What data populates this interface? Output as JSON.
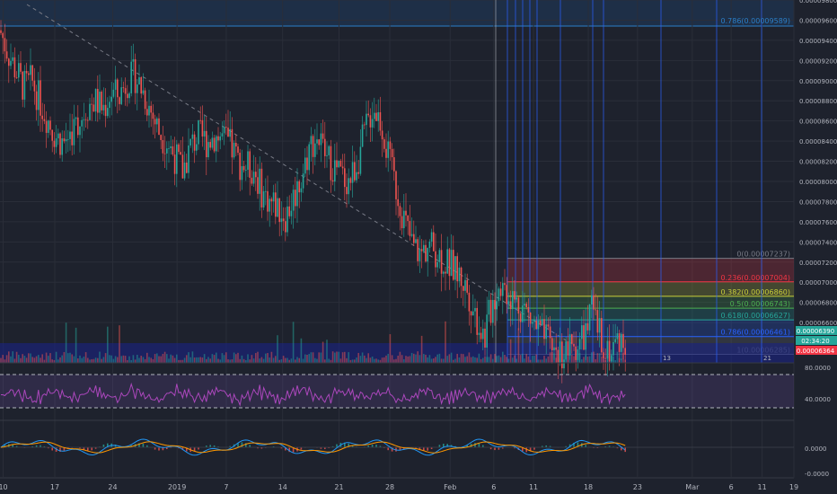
{
  "chart_data": {
    "type": "candlestick",
    "price_axis": {
      "range": [
        6.2e-05,
        9.8e-05
      ],
      "ticks": [
        "0.00009800",
        "0.00009600",
        "0.00009400",
        "0.00009200",
        "0.00009000",
        "0.00008800",
        "0.00008600",
        "0.00008400",
        "0.00008200",
        "0.00008000",
        "0.00007800",
        "0.00007600",
        "0.00007400",
        "0.00007200",
        "0.00007000",
        "0.00006800",
        "0.00006600"
      ]
    },
    "date_axis": {
      "labels": [
        {
          "t": "10",
          "x": 0.004
        },
        {
          "t": "17",
          "x": 0.069
        },
        {
          "t": "24",
          "x": 0.142
        },
        {
          "t": "2019",
          "x": 0.223
        },
        {
          "t": "7",
          "x": 0.285
        },
        {
          "t": "14",
          "x": 0.356
        },
        {
          "t": "21",
          "x": 0.427
        },
        {
          "t": "28",
          "x": 0.491
        },
        {
          "t": "Feb",
          "x": 0.567
        },
        {
          "t": "6",
          "x": 0.622
        },
        {
          "t": "11",
          "x": 0.672
        },
        {
          "t": "18",
          "x": 0.741
        },
        {
          "t": "23",
          "x": 0.803
        },
        {
          "t": "Mar",
          "x": 0.872
        },
        {
          "t": "6",
          "x": 0.921
        },
        {
          "t": "11",
          "x": 0.96
        },
        {
          "t": "19",
          "x": 1.0
        }
      ]
    },
    "fibonacci": [
      {
        "ratio": "0.786",
        "value": "0.00009589",
        "label": "0.786(0.00009589)",
        "color": "#2a7fc9"
      },
      {
        "ratio": "0",
        "value": "0.00007237",
        "label": "0(0.00007237)",
        "color": "#787b86"
      },
      {
        "ratio": "0.236",
        "value": "0.00007004",
        "label": "0.236(0.00007004)",
        "color": "#f23645"
      },
      {
        "ratio": "0.382",
        "value": "0.00006860",
        "label": "0.382(0.00006860)",
        "color": "#c9cf3a"
      },
      {
        "ratio": "0.5",
        "value": "0.00006743",
        "label": "0.5(0.00006743)",
        "color": "#4caf50"
      },
      {
        "ratio": "0.618",
        "value": "0.00006627",
        "label": "0.618(0.00006627)",
        "color": "#26a69a"
      },
      {
        "ratio": "0.786",
        "value": "0.00006461",
        "label": "0.786(0.00006461)",
        "color": "#2962ff"
      },
      {
        "ratio": "1",
        "value": "0.00006285",
        "label": "1(0.00006285)",
        "color": "#787b86"
      }
    ],
    "last_price": "0.00006390",
    "countdown": "02:34:20",
    "bid_price": "0.00006364",
    "cycle_labels": [
      "13",
      "21"
    ],
    "rsi": {
      "ticks": [
        "80.0000",
        "40.0000"
      ],
      "upper": 70,
      "lower": 30
    },
    "macd": {
      "ticks": [
        "0.0000",
        "-0.0000"
      ]
    },
    "price_path": [
      [
        0,
        9.5e-05
      ],
      [
        0.01,
        9.28e-05
      ],
      [
        0.02,
        9.1e-05
      ],
      [
        0.03,
        8.93e-05
      ],
      [
        0.04,
        9e-05
      ],
      [
        0.05,
        8.8e-05
      ],
      [
        0.06,
        8.62e-05
      ],
      [
        0.07,
        8.45e-05
      ],
      [
        0.08,
        8.38e-05
      ],
      [
        0.09,
        8.5e-05
      ],
      [
        0.1,
        8.6e-05
      ],
      [
        0.11,
        8.75e-05
      ],
      [
        0.12,
        8.8e-05
      ],
      [
        0.13,
        8.72e-05
      ],
      [
        0.14,
        8.88e-05
      ],
      [
        0.15,
        8.85e-05
      ],
      [
        0.16,
        9e-05
      ],
      [
        0.17,
        9.05e-05
      ],
      [
        0.18,
        8.9e-05
      ],
      [
        0.19,
        8.7e-05
      ],
      [
        0.2,
        8.5e-05
      ],
      [
        0.21,
        8.4e-05
      ],
      [
        0.22,
        8.25e-05
      ],
      [
        0.23,
        8.1e-05
      ],
      [
        0.24,
        8.35e-05
      ],
      [
        0.25,
        8.45e-05
      ],
      [
        0.26,
        8.4e-05
      ],
      [
        0.27,
        8.45e-05
      ],
      [
        0.28,
        8.43e-05
      ],
      [
        0.29,
        8.35e-05
      ],
      [
        0.3,
        8.2e-05
      ],
      [
        0.31,
        8.15e-05
      ],
      [
        0.32,
        8.12e-05
      ],
      [
        0.33,
        7.9e-05
      ],
      [
        0.34,
        7.8e-05
      ],
      [
        0.35,
        7.75e-05
      ],
      [
        0.36,
        7.65e-05
      ],
      [
        0.37,
        7.85e-05
      ],
      [
        0.38,
        8.05e-05
      ],
      [
        0.39,
        8.35e-05
      ],
      [
        0.4,
        8.45e-05
      ],
      [
        0.41,
        8.25e-05
      ],
      [
        0.42,
        8.15e-05
      ],
      [
        0.43,
        8.05e-05
      ],
      [
        0.44,
        8e-05
      ],
      [
        0.45,
        8.2e-05
      ],
      [
        0.46,
        8.5e-05
      ],
      [
        0.47,
        8.75e-05
      ],
      [
        0.48,
        8.6e-05
      ],
      [
        0.49,
        8.2e-05
      ],
      [
        0.5,
        7.9e-05
      ],
      [
        0.51,
        7.6e-05
      ],
      [
        0.52,
        7.35e-05
      ],
      [
        0.53,
        7.28e-05
      ],
      [
        0.54,
        7.38e-05
      ],
      [
        0.55,
        7.3e-05
      ],
      [
        0.56,
        7.2e-05
      ],
      [
        0.57,
        7.15e-05
      ],
      [
        0.58,
        7.05e-05
      ],
      [
        0.59,
        6.9e-05
      ],
      [
        0.6,
        6.65e-05
      ],
      [
        0.61,
        6.45e-05
      ],
      [
        0.62,
        6.8e-05
      ],
      [
        0.63,
        7e-05
      ],
      [
        0.64,
        6.9e-05
      ],
      [
        0.65,
        6.8e-05
      ],
      [
        0.66,
        6.75e-05
      ],
      [
        0.67,
        6.6e-05
      ],
      [
        0.68,
        6.5e-05
      ],
      [
        0.69,
        6.4e-05
      ],
      [
        0.7,
        6.32e-05
      ],
      [
        0.71,
        6.3e-05
      ],
      [
        0.72,
        6.35e-05
      ],
      [
        0.73,
        6.4e-05
      ],
      [
        0.74,
        6.55e-05
      ],
      [
        0.745,
        6.72e-05
      ],
      [
        0.75,
        6.6e-05
      ],
      [
        0.76,
        6.4e-05
      ],
      [
        0.77,
        6.33e-05
      ],
      [
        0.78,
        6.45e-05
      ],
      [
        0.79,
        6.39e-05
      ]
    ]
  }
}
